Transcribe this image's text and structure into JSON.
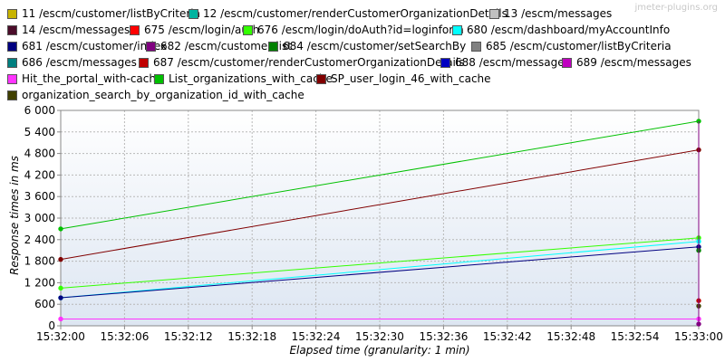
{
  "watermark": "jmeter-plugins.org",
  "chart_data": {
    "type": "line",
    "xlabel": "Elapsed time (granularity: 1 min)",
    "ylabel": "Response times in ms",
    "ylim": [
      0,
      6000
    ],
    "yticks": [
      0,
      600,
      1200,
      1800,
      2400,
      3000,
      3600,
      4200,
      4800,
      5400,
      6000
    ],
    "ytick_labels": [
      "0",
      "600",
      "1 200",
      "1 800",
      "2 400",
      "3 000",
      "3 600",
      "4 200",
      "4 800",
      "5 400",
      "6 000"
    ],
    "xticks": [
      "15:32:00",
      "15:32:06",
      "15:32:12",
      "15:32:18",
      "15:32:24",
      "15:32:30",
      "15:32:36",
      "15:32:42",
      "15:32:48",
      "15:32:54",
      "15:33:00"
    ],
    "xlim_seconds": [
      0,
      60
    ],
    "grid": true,
    "legend_position": "top",
    "series": [
      {
        "name": "11 /escm/customer/listByCriteria",
        "color": "#c8b400",
        "x": [],
        "values": []
      },
      {
        "name": "12 /escm/customer/renderCustomerOrganizationDetails",
        "color": "#00b4a0",
        "x": [],
        "values": []
      },
      {
        "name": "13 /escm/messages",
        "color": "#c0c0c0",
        "x": [],
        "values": []
      },
      {
        "name": "14 /escm/messages",
        "color": "#4b0d2a",
        "x": [],
        "values": []
      },
      {
        "name": "675 /escm/login/auth",
        "color": "#ff0000",
        "x": [],
        "values": []
      },
      {
        "name": "676 /escm/login/doAuth?id=loginform",
        "color": "#33ff00",
        "x": [
          "15:32:00",
          "15:33:00"
        ],
        "values": [
          1050,
          2450
        ]
      },
      {
        "name": "680 /escm/dashboard/myAccountInfo",
        "color": "#00ffff",
        "x": [
          "15:32:00",
          "15:33:00"
        ],
        "values": [
          780,
          2350
        ]
      },
      {
        "name": "681 /escm/customer/index",
        "color": "#000080",
        "x": [
          "15:32:00",
          "15:33:00"
        ],
        "values": [
          780,
          2200
        ]
      },
      {
        "name": "682 /escm/customer/list",
        "color": "#800080",
        "x": [
          "15:33:00"
        ],
        "values": [
          50
        ]
      },
      {
        "name": "684 /escm/customer/setSearchBy",
        "color": "#008000",
        "x": [
          "15:33:00"
        ],
        "values": [
          2100
        ]
      },
      {
        "name": "685 /escm/customer/listByCriteria",
        "color": "#808080",
        "x": [],
        "values": []
      },
      {
        "name": "686 /escm/messages",
        "color": "#008080",
        "x": [],
        "values": []
      },
      {
        "name": "687 /escm/customer/renderCustomerOrganizationDetails",
        "color": "#c00000",
        "x": [
          "15:33:00"
        ],
        "values": [
          700
        ]
      },
      {
        "name": "688 /escm/messages",
        "color": "#0000c0",
        "x": [],
        "values": []
      },
      {
        "name": "689 /escm/messages",
        "color": "#c000c0",
        "x": [],
        "values": []
      },
      {
        "name": "Hit_the_portal_with-cache",
        "color": "#ff33ff",
        "x": [
          "15:32:00",
          "15:33:00"
        ],
        "values": [
          190,
          190
        ]
      },
      {
        "name": "List_organizations_with_cache",
        "color": "#00c000",
        "x": [
          "15:32:00",
          "15:33:00"
        ],
        "values": [
          2700,
          5700
        ]
      },
      {
        "name": "SP_user_login_46_with_cache",
        "color": "#800000",
        "x": [
          "15:32:00",
          "15:33:00"
        ],
        "values": [
          1850,
          4900
        ]
      },
      {
        "name": "organization_search_by_organization_id_with_cache",
        "color": "#404000",
        "x": [
          "15:33:00"
        ],
        "values": [
          550
        ]
      }
    ]
  }
}
